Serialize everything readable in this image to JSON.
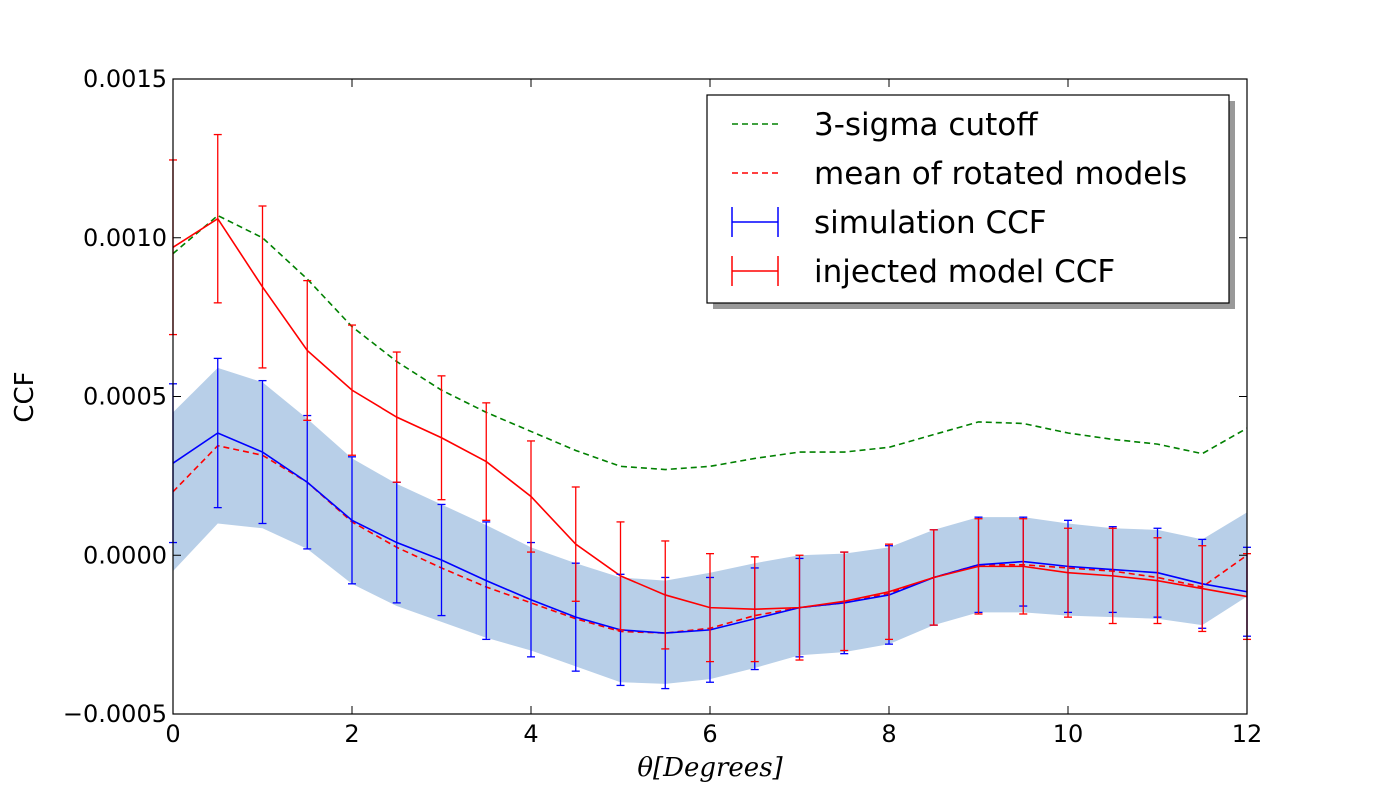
{
  "chart_data": {
    "type": "line",
    "title": "",
    "xlabel": "θ[Degrees]",
    "ylabel": "CCF",
    "xlim": [
      0,
      12
    ],
    "ylim": [
      -0.0005,
      0.0015
    ],
    "xticks": [
      0,
      2,
      4,
      6,
      8,
      10,
      12
    ],
    "xtick_labels": [
      "0",
      "2",
      "4",
      "6",
      "8",
      "10",
      "12"
    ],
    "yticks": [
      -0.0005,
      0.0,
      0.0005,
      0.001,
      0.0015
    ],
    "ytick_labels": [
      "−0.0005",
      "0.0000",
      "0.0005",
      "0.0010",
      "0.0015"
    ],
    "grid": false,
    "legend_position": "top-right",
    "x": [
      0,
      0.5,
      1,
      1.5,
      2,
      2.5,
      3,
      3.5,
      4,
      4.5,
      5,
      5.5,
      6,
      6.5,
      7,
      7.5,
      8,
      8.5,
      9,
      9.5,
      10,
      10.5,
      11,
      11.5,
      12
    ],
    "series": [
      {
        "name": "3-sigma cutoff",
        "style": "dashed",
        "color": "#008000",
        "values": [
          0.00095,
          0.00107,
          0.001,
          0.00087,
          0.00072,
          0.00061,
          0.00052,
          0.00045,
          0.00039,
          0.00033,
          0.00028,
          0.00027,
          0.00028,
          0.000305,
          0.000325,
          0.000325,
          0.00034,
          0.00038,
          0.00042,
          0.000415,
          0.000385,
          0.000365,
          0.00035,
          0.00032,
          0.0004
        ]
      },
      {
        "name": "mean of rotated models",
        "style": "dashed",
        "color": "#ff0000",
        "values": [
          0.0002,
          0.000345,
          0.000315,
          0.00023,
          0.000105,
          2.5e-05,
          -4e-05,
          -0.0001,
          -0.00015,
          -0.0002,
          -0.00024,
          -0.000245,
          -0.00023,
          -0.00019,
          -0.000165,
          -0.00015,
          -0.00012,
          -7e-05,
          -3e-05,
          -3e-05,
          -4e-05,
          -5e-05,
          -7e-05,
          -0.0001,
          0.0
        ]
      },
      {
        "name": "simulation CCF",
        "style": "solid",
        "color": "#0000ff",
        "values": [
          0.00029,
          0.000385,
          0.000325,
          0.00023,
          0.00011,
          4e-05,
          -1.5e-05,
          -8e-05,
          -0.00014,
          -0.000195,
          -0.000235,
          -0.000245,
          -0.000235,
          -0.0002,
          -0.000165,
          -0.00015,
          -0.000125,
          -7e-05,
          -3e-05,
          -2e-05,
          -3.5e-05,
          -4.5e-05,
          -5.5e-05,
          -9e-05,
          -0.000115
        ],
        "errors": [
          0.00025,
          0.000235,
          0.000225,
          0.00021,
          0.0002,
          0.00019,
          0.000175,
          0.000185,
          0.00018,
          0.00017,
          0.000175,
          0.000175,
          0.000165,
          0.00016,
          0.000155,
          0.00016,
          0.000155,
          0.00015,
          0.00015,
          0.00014,
          0.000145,
          0.000135,
          0.00014,
          0.00014,
          0.00014
        ]
      },
      {
        "name": "injected model CCF",
        "style": "solid",
        "color": "#ff0000",
        "values": [
          0.00097,
          0.00106,
          0.000845,
          0.000645,
          0.00052,
          0.000435,
          0.00037,
          0.000295,
          0.000185,
          3.5e-05,
          -6.5e-05,
          -0.000125,
          -0.000165,
          -0.00017,
          -0.000165,
          -0.000145,
          -0.000115,
          -7e-05,
          -3.5e-05,
          -3.5e-05,
          -5.5e-05,
          -6.5e-05,
          -8e-05,
          -0.000105,
          -0.00013
        ],
        "errors": [
          0.000275,
          0.000265,
          0.000255,
          0.00022,
          0.000205,
          0.000205,
          0.000195,
          0.000185,
          0.000175,
          0.00018,
          0.00017,
          0.00017,
          0.00017,
          0.000165,
          0.000165,
          0.000155,
          0.00015,
          0.00015,
          0.00015,
          0.00015,
          0.00014,
          0.00015,
          0.000135,
          0.000135,
          0.000135
        ]
      }
    ],
    "band": {
      "color": "#b8cfe8",
      "lower": [
        -5e-05,
        0.0001,
        8.5e-05,
        2e-05,
        -9e-05,
        -0.00016,
        -0.00021,
        -0.00026,
        -0.0003,
        -0.00035,
        -0.0004,
        -0.000405,
        -0.00039,
        -0.000355,
        -0.000315,
        -0.000305,
        -0.00028,
        -0.00022,
        -0.00018,
        -0.00018,
        -0.00019,
        -0.000195,
        -0.0002,
        -0.00022,
        -0.00013
      ],
      "upper": [
        0.00045,
        0.00059,
        0.000545,
        0.00043,
        0.000305,
        0.000225,
        0.00016,
        9.5e-05,
        2.5e-05,
        -2.5e-05,
        -7e-05,
        -8e-05,
        -5.5e-05,
        -2.5e-05,
        0.0,
        5e-06,
        2.5e-05,
        8e-05,
        0.00012,
        0.00012,
        0.0001,
        8.5e-05,
        8e-05,
        5e-05,
        0.000135
      ]
    }
  }
}
